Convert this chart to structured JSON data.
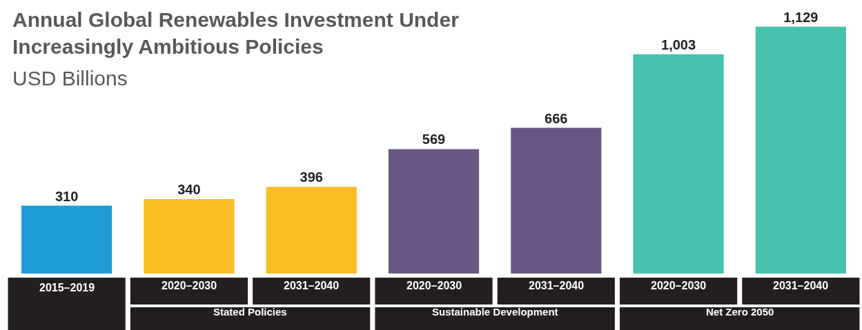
{
  "chart_data": {
    "type": "bar",
    "title": "Annual Global Renewables Investment Under Increasingly Ambitious Policies",
    "subtitle": "USD Billions",
    "categories": [
      "2015–2019",
      "2020–2030",
      "2031–2040",
      "2020–2030",
      "2031–2040",
      "2020–2030",
      "2031–2040"
    ],
    "values": [
      310,
      340,
      396,
      569,
      666,
      1003,
      1129
    ],
    "value_labels": [
      "310",
      "340",
      "396",
      "569",
      "666",
      "1,003",
      "1,129"
    ],
    "colors": [
      "#1f9bd7",
      "#fbbd24",
      "#fbbd24",
      "#685785",
      "#685785",
      "#46c1ad",
      "#46c1ad"
    ],
    "annotations": [
      "Stated Policies",
      "Sustainable Development",
      "Net Zero 2050"
    ]
  }
}
